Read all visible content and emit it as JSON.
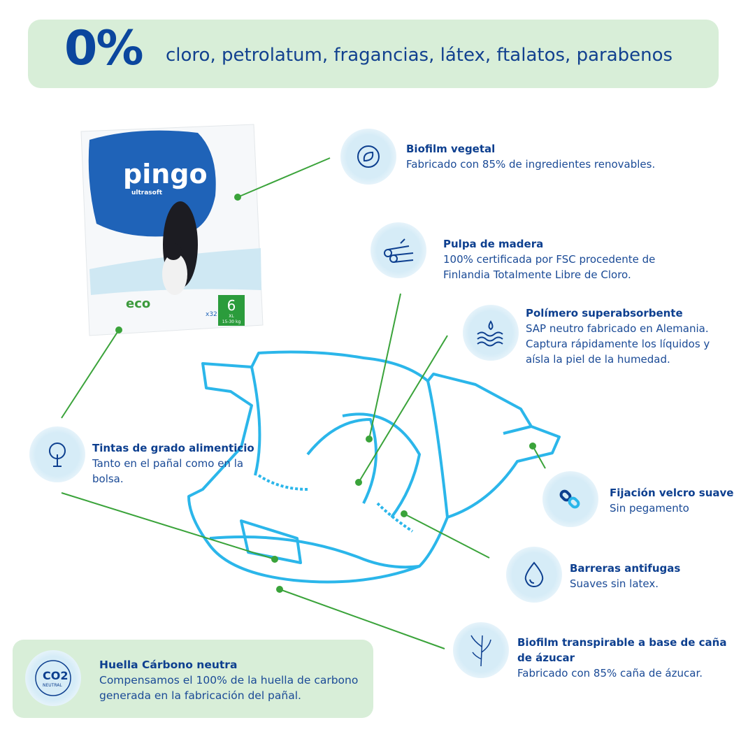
{
  "banner": {
    "percent": "0%",
    "text": "cloro, petrolatum, fragancias, látex, ftalatos, parabenos"
  },
  "product": {
    "brand": "pingo",
    "subline": "ultrasoft",
    "size": "6",
    "size_label": "XL",
    "weight": "15-30 kg",
    "count": "x32",
    "eco": "eco"
  },
  "features": [
    {
      "title": "Biofilm vegetal",
      "desc": "Fabricado con 85% de ingredientes renovables.",
      "icon": "recycle-leaf-icon"
    },
    {
      "title": "Pulpa de madera",
      "desc": "100% certificada por FSC procedente de Finlandia Totalmente Libre de Cloro.",
      "icon": "wood-logs-icon"
    },
    {
      "title": "Polímero superabsorbente",
      "desc": "SAP neutro fabricado en Alemania. Captura rápidamente los líquidos y aísla la piel de la humedad.",
      "icon": "water-drops-icon"
    },
    {
      "title": "Tintas de grado alimenticio",
      "desc": "Tanto en el pañal como en la bolsa.",
      "icon": "tree-icon"
    },
    {
      "title": "Fijación velcro suave",
      "desc": "Sin pegamento",
      "icon": "link-icon"
    },
    {
      "title": "Barreras antifugas",
      "desc": "Suaves sin latex.",
      "icon": "drop-icon"
    },
    {
      "title": "Biofilm transpirable a base de caña de ázucar",
      "desc": "Fabricado con 85% caña de ázucar.",
      "icon": "sugarcane-icon"
    }
  ],
  "carbon": {
    "title": "Huella Cárbono neutra",
    "desc": "Compensamos el 100% de la huella de carbono generada en la fabricación del pañal.",
    "badge": "CO2",
    "badge_sub": "NEUTRAL"
  },
  "colors": {
    "navy": "#0d3f8f",
    "banner_bg": "#d8eed8",
    "diaper_line": "#2bb6ea",
    "leader_line": "#3aa33a"
  }
}
